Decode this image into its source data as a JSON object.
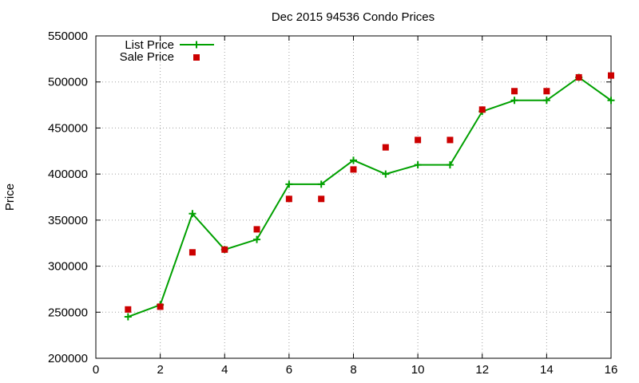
{
  "chart_data": {
    "type": "line",
    "title": "Dec 2015 94536 Condo Prices",
    "xlabel": "",
    "ylabel": "Price",
    "xlim": [
      0,
      16
    ],
    "ylim": [
      200000,
      550000
    ],
    "x_ticks": [
      0,
      2,
      4,
      6,
      8,
      10,
      12,
      14,
      16
    ],
    "y_ticks": [
      200000,
      250000,
      300000,
      350000,
      400000,
      450000,
      500000,
      550000
    ],
    "grid": true,
    "legend_position": "top-left",
    "series": [
      {
        "name": "List Price",
        "style": "line-with-plus-markers",
        "color": "#00a000",
        "x": [
          1,
          2,
          3,
          4,
          5,
          6,
          7,
          8,
          9,
          10,
          11,
          12,
          13,
          14,
          15,
          16
        ],
        "values": [
          245000,
          258000,
          357000,
          318000,
          329000,
          389000,
          389000,
          415000,
          400000,
          410000,
          410000,
          468000,
          480000,
          480000,
          505000,
          480000
        ]
      },
      {
        "name": "Sale Price",
        "style": "square-markers",
        "color": "#cc0000",
        "x": [
          1,
          2,
          3,
          4,
          5,
          6,
          7,
          8,
          9,
          10,
          11,
          12,
          13,
          14,
          15,
          16
        ],
        "values": [
          253000,
          256000,
          315000,
          318000,
          340000,
          373000,
          373000,
          405000,
          429000,
          437000,
          437000,
          470000,
          490000,
          490000,
          505000,
          507000
        ]
      }
    ]
  }
}
